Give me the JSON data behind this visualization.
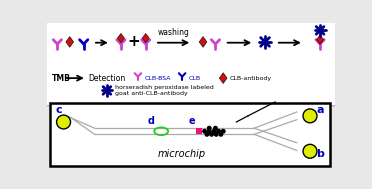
{
  "bg_color": "#e8e8e8",
  "magenta": "#cc44cc",
  "red": "#cc1111",
  "blue_dark": "#0000bb",
  "navy": "#000088",
  "green_oval": "#22cc22",
  "yellow": "#ddee00",
  "pink": "#ee1177",
  "black": "#000000",
  "gray_channel": "#aaaaaa",
  "text_washing": "washing",
  "text_tmb": "TMB",
  "text_detection": "Detection",
  "text_clb_bsa": "CLB-BSA",
  "text_clb": "CLB",
  "text_clb_antibody": "CLB-antibody",
  "text_hrp": "horseradish peroxidase labeled",
  "text_goat": "goat anti-CLB-antibody",
  "text_microchip": "microchip"
}
